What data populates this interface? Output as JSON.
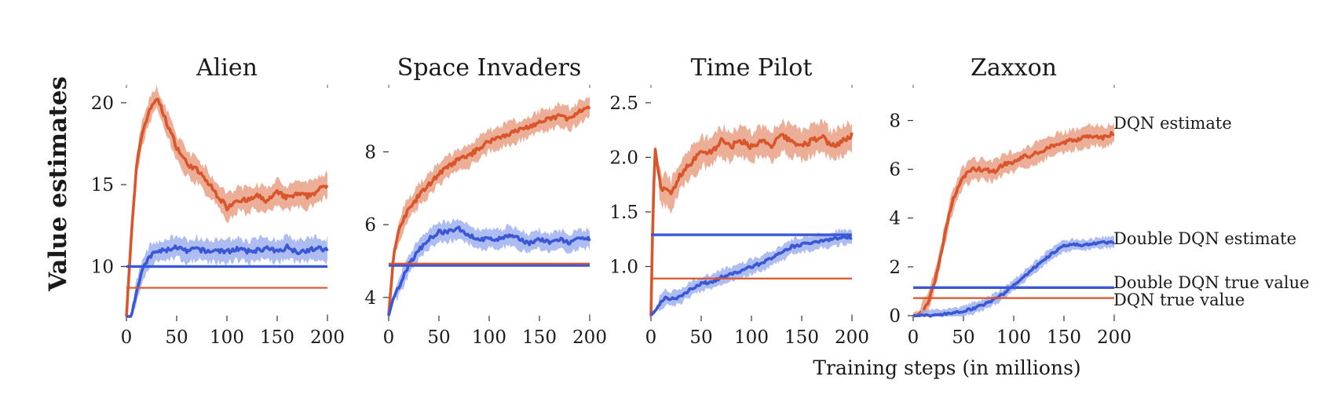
{
  "figure": {
    "ylabel": "Value estimates",
    "xlabel": "Training steps (in millions)"
  },
  "colors": {
    "dqn": "#d9552b",
    "dqn_band": "#e9a085",
    "double": "#3a57d6",
    "double_band": "#9fb0ee"
  },
  "series_labels": {
    "dqn_estimate": "DQN estimate",
    "double_estimate": "Double DQN estimate",
    "double_true": "Double DQN true value",
    "dqn_true": "DQN true value"
  },
  "chart_data": [
    {
      "type": "line",
      "title": "Alien",
      "xlim": [
        0,
        200
      ],
      "ylim": [
        7,
        21
      ],
      "xticks": [
        0,
        50,
        100,
        150,
        200
      ],
      "yticks": [
        10,
        15,
        20
      ],
      "series": [
        {
          "name": "DQN estimate",
          "kind": "estimate",
          "x": [
            0,
            5,
            10,
            15,
            20,
            25,
            30,
            35,
            40,
            50,
            60,
            70,
            80,
            90,
            100,
            110,
            120,
            130,
            140,
            150,
            160,
            170,
            180,
            190,
            200
          ],
          "y": [
            7,
            12,
            16,
            18,
            19,
            19.8,
            20.3,
            19.6,
            18.8,
            17.3,
            16.3,
            15.9,
            15.2,
            14.4,
            13.6,
            14.1,
            14.0,
            14.3,
            14.0,
            14.5,
            14.2,
            14.4,
            14.3,
            14.6,
            15.0
          ],
          "band": 1.0
        },
        {
          "name": "Double DQN estimate",
          "kind": "estimate",
          "x": [
            0,
            5,
            10,
            15,
            20,
            25,
            30,
            40,
            50,
            60,
            70,
            80,
            90,
            100,
            110,
            120,
            130,
            140,
            150,
            160,
            170,
            180,
            190,
            200
          ],
          "y": [
            6.5,
            7.0,
            8.5,
            9.6,
            10.3,
            10.7,
            10.9,
            11.0,
            11.2,
            10.9,
            11.1,
            10.9,
            11.0,
            10.9,
            11.1,
            10.9,
            11.0,
            11.1,
            10.9,
            11.2,
            10.9,
            11.0,
            11.1,
            11.0
          ],
          "band": 0.9
        },
        {
          "name": "Double DQN true value",
          "kind": "true",
          "y": 10.0
        },
        {
          "name": "DQN true value",
          "kind": "true",
          "y": 8.7
        }
      ]
    },
    {
      "type": "line",
      "title": "Space Invaders",
      "xlim": [
        0,
        200
      ],
      "ylim": [
        3.5,
        9.8
      ],
      "xticks": [
        0,
        50,
        100,
        150,
        200
      ],
      "yticks": [
        4,
        6,
        8
      ],
      "series": [
        {
          "name": "DQN estimate",
          "kind": "estimate",
          "x": [
            0,
            5,
            10,
            15,
            20,
            30,
            40,
            50,
            60,
            70,
            80,
            90,
            100,
            110,
            120,
            130,
            140,
            150,
            160,
            170,
            180,
            190,
            200
          ],
          "y": [
            3.5,
            5.2,
            5.8,
            6.2,
            6.4,
            6.8,
            7.1,
            7.4,
            7.6,
            7.8,
            7.9,
            8.1,
            8.3,
            8.4,
            8.5,
            8.6,
            8.7,
            8.8,
            8.9,
            9.0,
            8.9,
            9.1,
            9.2
          ],
          "band": 0.4
        },
        {
          "name": "Double DQN estimate",
          "kind": "estimate",
          "x": [
            0,
            5,
            10,
            15,
            20,
            30,
            40,
            50,
            60,
            70,
            80,
            90,
            100,
            110,
            120,
            130,
            140,
            150,
            160,
            170,
            180,
            190,
            200
          ],
          "y": [
            3.5,
            4.0,
            4.3,
            4.6,
            4.9,
            5.3,
            5.6,
            5.8,
            5.8,
            5.9,
            5.7,
            5.6,
            5.6,
            5.6,
            5.7,
            5.6,
            5.5,
            5.6,
            5.5,
            5.6,
            5.5,
            5.6,
            5.6
          ],
          "band": 0.35
        },
        {
          "name": "Double DQN true value",
          "kind": "true",
          "y": 4.88
        },
        {
          "name": "DQN true value",
          "kind": "true",
          "y": 4.93
        }
      ]
    },
    {
      "type": "line",
      "title": "Time Pilot",
      "xlim": [
        0,
        200
      ],
      "ylim": [
        0.55,
        2.65
      ],
      "xticks": [
        0,
        50,
        100,
        150,
        200
      ],
      "yticks": [
        1.0,
        1.5,
        2.0,
        2.5
      ],
      "series": [
        {
          "name": "DQN estimate",
          "kind": "estimate",
          "x": [
            0,
            2,
            4,
            6,
            10,
            15,
            20,
            25,
            30,
            40,
            50,
            60,
            70,
            80,
            90,
            100,
            110,
            120,
            130,
            140,
            150,
            160,
            170,
            180,
            190,
            200
          ],
          "y": [
            0.55,
            1.5,
            2.1,
            1.95,
            1.7,
            1.7,
            1.65,
            1.75,
            1.85,
            1.95,
            2.05,
            2.05,
            2.15,
            2.1,
            2.15,
            2.1,
            2.15,
            2.1,
            2.2,
            2.15,
            2.1,
            2.15,
            2.2,
            2.1,
            2.15,
            2.2
          ],
          "band": 0.18
        },
        {
          "name": "Double DQN estimate",
          "kind": "estimate",
          "x": [
            0,
            5,
            10,
            15,
            20,
            30,
            40,
            50,
            60,
            70,
            80,
            90,
            100,
            110,
            120,
            130,
            140,
            150,
            160,
            170,
            180,
            190,
            200
          ],
          "y": [
            0.55,
            0.6,
            0.68,
            0.72,
            0.7,
            0.73,
            0.8,
            0.84,
            0.86,
            0.9,
            0.93,
            0.96,
            1.0,
            1.03,
            1.08,
            1.12,
            1.18,
            1.2,
            1.22,
            1.24,
            1.25,
            1.27,
            1.27
          ],
          "band": 0.09
        },
        {
          "name": "Double DQN true value",
          "kind": "true",
          "y": 1.29
        },
        {
          "name": "DQN true value",
          "kind": "true",
          "y": 0.89
        }
      ]
    },
    {
      "type": "line",
      "title": "Zaxxon",
      "xlim": [
        0,
        200
      ],
      "ylim": [
        0,
        9.4
      ],
      "xticks": [
        0,
        50,
        100,
        150,
        200
      ],
      "yticks": [
        0,
        2,
        4,
        6,
        8
      ],
      "series": [
        {
          "name": "DQN estimate",
          "kind": "estimate",
          "x": [
            0,
            5,
            10,
            15,
            20,
            25,
            30,
            35,
            40,
            45,
            50,
            60,
            70,
            80,
            90,
            100,
            110,
            120,
            130,
            140,
            150,
            160,
            170,
            180,
            190,
            200
          ],
          "y": [
            0,
            0.05,
            0.2,
            0.6,
            1.2,
            2.0,
            3.0,
            4.0,
            4.8,
            5.3,
            5.7,
            6.0,
            6.0,
            5.9,
            6.2,
            6.3,
            6.5,
            6.6,
            6.8,
            7.0,
            7.1,
            7.2,
            7.3,
            7.4,
            7.3,
            7.5
          ],
          "band": 0.55
        },
        {
          "name": "Double DQN estimate",
          "kind": "estimate",
          "x": [
            0,
            10,
            20,
            30,
            40,
            50,
            60,
            70,
            80,
            90,
            100,
            110,
            120,
            130,
            140,
            150,
            160,
            170,
            180,
            190,
            200
          ],
          "y": [
            0,
            0.0,
            0.02,
            0.05,
            0.1,
            0.2,
            0.3,
            0.45,
            0.65,
            0.9,
            1.25,
            1.6,
            1.95,
            2.3,
            2.6,
            2.85,
            2.9,
            2.9,
            2.95,
            3.0,
            3.0
          ],
          "band": 0.3
        },
        {
          "name": "Double DQN true value",
          "kind": "true",
          "y": 1.15
        },
        {
          "name": "DQN true value",
          "kind": "true",
          "y": 0.72
        }
      ]
    }
  ]
}
